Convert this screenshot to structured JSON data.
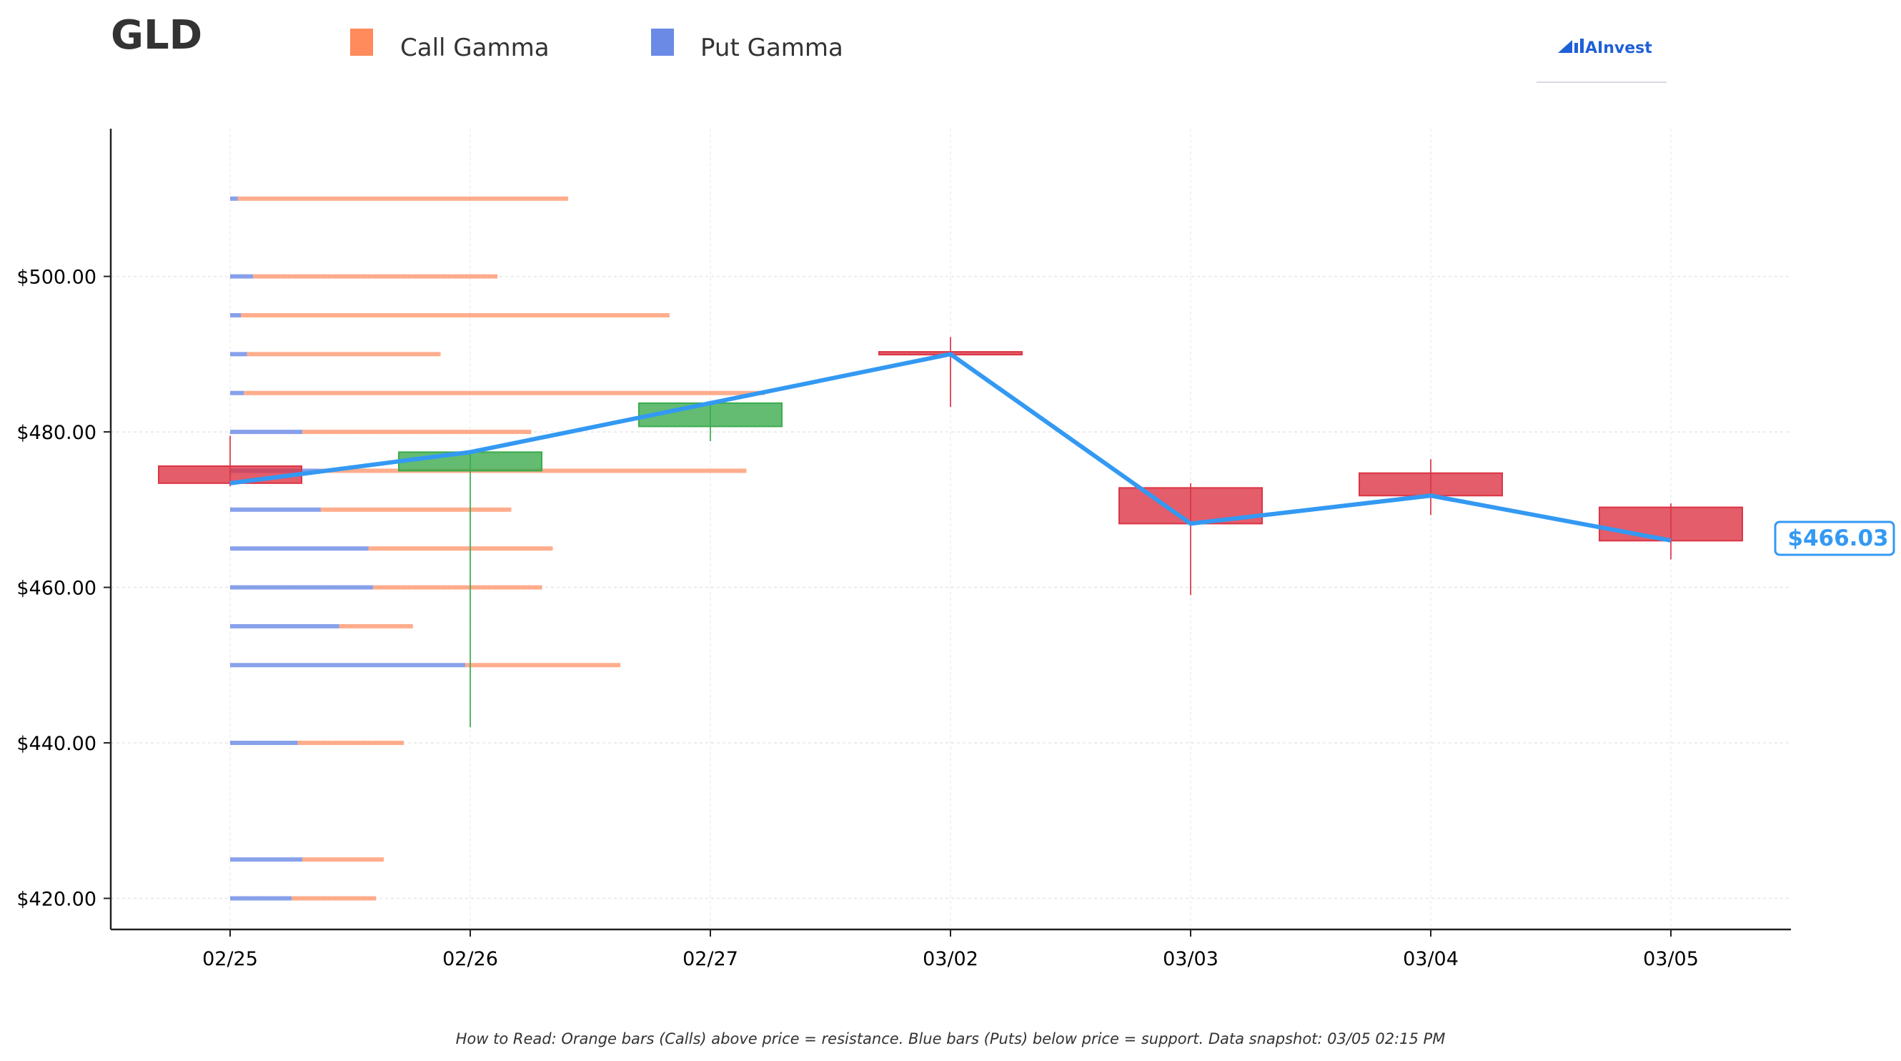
{
  "chart_data": {
    "type": "candlestick",
    "title": "GLD",
    "legend": {
      "placement": "top",
      "items": [
        {
          "label": "Call Gamma",
          "color": "#FF8A5B"
        },
        {
          "label": "Put Gamma",
          "color": "#6A8AE6"
        }
      ]
    },
    "logo_text": "AInvest",
    "categories": [
      "02/25",
      "02/26",
      "02/27",
      "03/02",
      "03/03",
      "03/04",
      "03/05"
    ],
    "ylim": [
      416,
      519
    ],
    "yticks": [
      420,
      440,
      460,
      480,
      500
    ],
    "ytick_labels": [
      "$420.00",
      "$440.00",
      "$460.00",
      "$480.00",
      "$500.00"
    ],
    "grid": true,
    "candles": [
      {
        "date": "02/25",
        "open": 475.6,
        "high": 479.5,
        "low": 473.0,
        "close": 473.4
      },
      {
        "date": "02/26",
        "open": 475.0,
        "high": 477.5,
        "low": 442.0,
        "close": 477.4
      },
      {
        "date": "02/27",
        "open": 480.7,
        "high": 484.0,
        "low": 478.8,
        "close": 483.7
      },
      {
        "date": "03/02",
        "open": 490.3,
        "high": 492.2,
        "low": 483.2,
        "close": 490.0
      },
      {
        "date": "03/03",
        "open": 472.8,
        "high": 473.4,
        "low": 459.0,
        "close": 468.2
      },
      {
        "date": "03/04",
        "open": 474.7,
        "high": 476.5,
        "low": 469.3,
        "close": 471.8
      },
      {
        "date": "03/05",
        "open": 470.3,
        "high": 470.8,
        "low": 463.6,
        "close": 466.0
      }
    ],
    "price_line": {
      "color": "#3399F3",
      "points": [
        473.4,
        477.4,
        483.7,
        490.0,
        468.2,
        471.8,
        466.03
      ]
    },
    "current_price_label": "$466.03",
    "gamma_levels": [
      {
        "strike": 510,
        "put": 0.05,
        "call": 2.15
      },
      {
        "strike": 500,
        "put": 0.15,
        "call": 1.59
      },
      {
        "strike": 495,
        "put": 0.07,
        "call": 2.79
      },
      {
        "strike": 490,
        "put": 0.11,
        "call": 1.26
      },
      {
        "strike": 485,
        "put": 0.09,
        "call": 3.39
      },
      {
        "strike": 480,
        "put": 0.47,
        "call": 1.49
      },
      {
        "strike": 475,
        "put": 0.58,
        "call": 2.78
      },
      {
        "strike": 470,
        "put": 0.59,
        "call": 1.24
      },
      {
        "strike": 465,
        "put": 0.9,
        "call": 1.2
      },
      {
        "strike": 460,
        "put": 0.93,
        "call": 1.1
      },
      {
        "strike": 455,
        "put": 0.71,
        "call": 0.48
      },
      {
        "strike": 450,
        "put": 1.53,
        "call": 1.01
      },
      {
        "strike": 440,
        "put": 0.44,
        "call": 0.69
      },
      {
        "strike": 425,
        "put": 0.47,
        "call": 0.53
      },
      {
        "strike": 420,
        "put": 0.4,
        "call": 0.55
      }
    ],
    "footer_note": "How to Read: Orange bars (Calls) above price = resistance. Blue bars (Puts) below price = support. Data snapshot: 03/05 02:15 PM"
  }
}
